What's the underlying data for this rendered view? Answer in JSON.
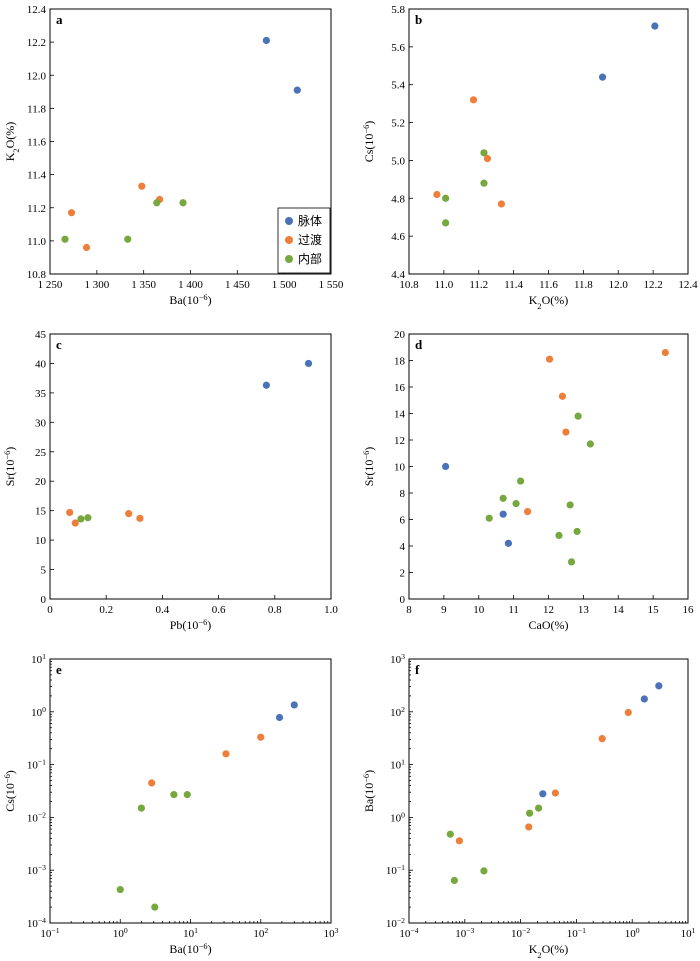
{
  "series_colors": {
    "脉体": "#4a72b8",
    "过渡": "#ee7f3b",
    "内部": "#76a83f"
  },
  "legend": [
    "脉体",
    "过渡",
    "内部"
  ],
  "chart_data": [
    {
      "panel": "a",
      "type": "scatter",
      "xlabel": "Ba(10⁻⁶)",
      "ylabel": "K₂O(%)",
      "xlim": [
        1250,
        1550
      ],
      "ylim": [
        10.8,
        12.4
      ],
      "xscale": "linear",
      "yscale": "linear",
      "xticks": [
        1250,
        1300,
        1350,
        1400,
        1450,
        1500,
        1550
      ],
      "xticklabels": [
        "1 250",
        "1 300",
        "1 350",
        "1 400",
        "1 450",
        "1 500",
        "1 550"
      ],
      "yticks": [
        10.8,
        11.0,
        11.2,
        11.4,
        11.6,
        11.8,
        12.0,
        12.2,
        12.4
      ],
      "yticklabels": [
        "10.8",
        "11.0",
        "11.2",
        "11.4",
        "11.6",
        "11.8",
        "12.0",
        "12.2",
        "12.4"
      ],
      "legend_position": "bottom-right",
      "series": [
        {
          "name": "脉体",
          "points": [
            [
              1481,
              12.21
            ],
            [
              1514,
              11.91
            ]
          ]
        },
        {
          "name": "过渡",
          "points": [
            [
              1273,
              11.17
            ],
            [
              1289,
              10.96
            ],
            [
              1348,
              11.33
            ],
            [
              1367,
              11.25
            ]
          ]
        },
        {
          "name": "内部",
          "points": [
            [
              1266,
              11.01
            ],
            [
              1333,
              11.01
            ],
            [
              1364,
              11.23
            ],
            [
              1392,
              11.23
            ]
          ]
        }
      ]
    },
    {
      "panel": "b",
      "type": "scatter",
      "xlabel": "K₂O(%)",
      "ylabel": "Cs(10⁻⁶)",
      "xlim": [
        10.8,
        12.4
      ],
      "ylim": [
        4.4,
        5.8
      ],
      "xscale": "linear",
      "yscale": "linear",
      "xticks": [
        10.8,
        11.0,
        11.2,
        11.4,
        11.6,
        11.8,
        12.0,
        12.2,
        12.4
      ],
      "xticklabels": [
        "10.8",
        "11.0",
        "11.2",
        "11.4",
        "11.6",
        "11.8",
        "12.0",
        "12.2",
        "12.4"
      ],
      "yticks": [
        4.4,
        4.6,
        4.8,
        5.0,
        5.2,
        5.4,
        5.6,
        5.8
      ],
      "yticklabels": [
        "4.4",
        "4.6",
        "4.8",
        "5.0",
        "5.2",
        "5.4",
        "5.6",
        "5.8"
      ],
      "series": [
        {
          "name": "脉体",
          "points": [
            [
              11.91,
              5.44
            ],
            [
              12.21,
              5.71
            ]
          ]
        },
        {
          "name": "过渡",
          "points": [
            [
              10.96,
              4.82
            ],
            [
              11.17,
              5.32
            ],
            [
              11.25,
              5.01
            ],
            [
              11.33,
              4.77
            ]
          ]
        },
        {
          "name": "内部",
          "points": [
            [
              11.01,
              4.8
            ],
            [
              11.01,
              4.67
            ],
            [
              11.23,
              5.04
            ],
            [
              11.23,
              4.88
            ]
          ]
        }
      ]
    },
    {
      "panel": "c",
      "type": "scatter",
      "xlabel": "Pb(10⁻⁶)",
      "ylabel": "Sr(10⁻⁶)",
      "xlim": [
        0,
        1.0
      ],
      "ylim": [
        0,
        45
      ],
      "xscale": "linear",
      "yscale": "linear",
      "xticks": [
        0,
        0.2,
        0.4,
        0.6,
        0.8,
        1.0
      ],
      "xticklabels": [
        "0",
        "0.2",
        "0.4",
        "0.6",
        "0.8",
        "1.0"
      ],
      "yticks": [
        0,
        5,
        10,
        15,
        20,
        25,
        30,
        35,
        40,
        45
      ],
      "yticklabels": [
        "0",
        "5",
        "10",
        "15",
        "20",
        "25",
        "30",
        "35",
        "40",
        "45"
      ],
      "series": [
        {
          "name": "脉体",
          "points": [
            [
              0.77,
              36.3
            ],
            [
              0.92,
              40.0
            ]
          ]
        },
        {
          "name": "过渡",
          "points": [
            [
              0.07,
              14.7
            ],
            [
              0.09,
              12.9
            ],
            [
              0.28,
              14.5
            ],
            [
              0.32,
              13.7
            ]
          ]
        },
        {
          "name": "内部",
          "points": [
            [
              0.11,
              13.6
            ],
            [
              0.135,
              13.8
            ]
          ]
        }
      ]
    },
    {
      "panel": "d",
      "type": "scatter",
      "xlabel": "CaO(%)",
      "ylabel": "Sr(10⁻⁶)",
      "xlim": [
        8,
        16
      ],
      "ylim": [
        0,
        20
      ],
      "xscale": "linear",
      "yscale": "linear",
      "xticks": [
        8,
        9,
        10,
        11,
        12,
        13,
        14,
        15,
        16
      ],
      "xticklabels": [
        "8",
        "9",
        "10",
        "11",
        "12",
        "13",
        "14",
        "15",
        "16"
      ],
      "yticks": [
        0,
        2,
        4,
        6,
        8,
        10,
        12,
        14,
        16,
        18,
        20
      ],
      "yticklabels": [
        "0",
        "2",
        "4",
        "6",
        "8",
        "10",
        "12",
        "14",
        "16",
        "18",
        "20"
      ],
      "series": [
        {
          "name": "脉体",
          "points": [
            [
              9.05,
              10.0
            ],
            [
              10.7,
              6.4
            ],
            [
              10.85,
              4.2
            ]
          ]
        },
        {
          "name": "过渡",
          "points": [
            [
              11.4,
              6.6
            ],
            [
              12.03,
              18.1
            ],
            [
              12.4,
              15.3
            ],
            [
              12.5,
              12.6
            ],
            [
              15.35,
              18.6
            ]
          ]
        },
        {
          "name": "内部",
          "points": [
            [
              10.3,
              6.1
            ],
            [
              10.7,
              7.6
            ],
            [
              11.07,
              7.2
            ],
            [
              11.2,
              8.9
            ],
            [
              12.3,
              4.8
            ],
            [
              12.62,
              7.1
            ],
            [
              12.66,
              2.8
            ],
            [
              12.82,
              5.1
            ],
            [
              12.85,
              13.8
            ],
            [
              13.2,
              11.7
            ]
          ]
        }
      ]
    },
    {
      "panel": "e",
      "type": "scatter",
      "xlabel": "Ba(10⁻⁶)",
      "ylabel": "Cs(10⁻⁶)",
      "xlim": [
        0.1,
        1000
      ],
      "ylim": [
        0.0001,
        10
      ],
      "xscale": "log",
      "yscale": "log",
      "xticks": [
        0.1,
        1,
        10,
        100,
        1000
      ],
      "xtick_bases": [
        "10",
        "10",
        "10",
        "10",
        "10"
      ],
      "xtick_exps": [
        "-1",
        "0",
        "1",
        "2",
        "3"
      ],
      "yticks": [
        0.0001,
        0.001,
        0.01,
        0.1,
        1,
        10
      ],
      "ytick_bases": [
        "10",
        "10",
        "10",
        "10",
        "10",
        "10"
      ],
      "ytick_exps": [
        "-4",
        "-3",
        "-2",
        "-1",
        "0",
        "1"
      ],
      "series": [
        {
          "name": "脉体",
          "points": [
            [
              185,
              0.78
            ],
            [
              300,
              1.35
            ]
          ]
        },
        {
          "name": "过渡",
          "points": [
            [
              2.8,
              0.045
            ],
            [
              32,
              0.16
            ],
            [
              100,
              0.33
            ]
          ]
        },
        {
          "name": "内部",
          "points": [
            [
              1.0,
              0.00043
            ],
            [
              2.0,
              0.015
            ],
            [
              3.1,
              0.0002
            ],
            [
              5.8,
              0.027
            ],
            [
              9.0,
              0.027
            ]
          ]
        }
      ]
    },
    {
      "panel": "f",
      "type": "scatter",
      "xlabel": "K₂O(%)",
      "ylabel": "Ba(10⁻⁶)",
      "xlim": [
        0.0001,
        10
      ],
      "ylim": [
        0.01,
        1000
      ],
      "xscale": "log",
      "yscale": "log",
      "xticks": [
        0.0001,
        0.001,
        0.01,
        0.1,
        1,
        10
      ],
      "xtick_bases": [
        "10",
        "10",
        "10",
        "10",
        "10",
        "10"
      ],
      "xtick_exps": [
        "-4",
        "-3",
        "-2",
        "-1",
        "0",
        "1"
      ],
      "yticks": [
        0.01,
        0.1,
        1,
        10,
        100,
        1000
      ],
      "ytick_bases": [
        "10",
        "10",
        "10",
        "10",
        "10",
        "10"
      ],
      "ytick_exps": [
        "-2",
        "-1",
        "0",
        "1",
        "2",
        "3"
      ],
      "series": [
        {
          "name": "脉体",
          "points": [
            [
              0.025,
              2.8
            ],
            [
              1.65,
              175
            ],
            [
              3.0,
              310
            ]
          ]
        },
        {
          "name": "过渡",
          "points": [
            [
              0.0008,
              0.36
            ],
            [
              0.014,
              0.66
            ],
            [
              0.042,
              2.9
            ],
            [
              0.29,
              31
            ],
            [
              0.85,
              97
            ]
          ]
        },
        {
          "name": "内部",
          "points": [
            [
              0.00055,
              0.48
            ],
            [
              0.00065,
              0.064
            ],
            [
              0.0022,
              0.097
            ],
            [
              0.0145,
              1.2
            ],
            [
              0.021,
              1.5
            ]
          ]
        }
      ]
    }
  ]
}
